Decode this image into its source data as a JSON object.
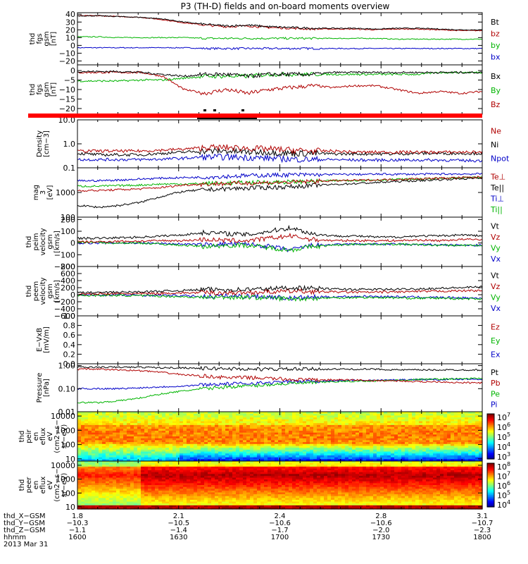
{
  "title": "P3 (TH-D) fields and on-board moments overview",
  "chart_data": [
    {
      "type": "line",
      "ylabel": [
        "thd",
        "fgs",
        "gsm",
        "[nT]"
      ],
      "ylim": [
        -25,
        42
      ],
      "yticks": [
        "40",
        "30",
        "20",
        "10",
        "0",
        "−10",
        "−20"
      ],
      "tickvals": [
        40,
        30,
        20,
        10,
        0,
        -10,
        -20
      ],
      "series": [
        {
          "name": "Bt",
          "color": "#000000",
          "values": [
            38,
            38,
            37,
            36,
            34,
            30,
            27,
            25,
            26,
            24,
            23,
            22,
            22,
            22,
            21,
            22,
            22,
            21,
            20,
            20
          ]
        },
        {
          "name": "bz",
          "color": "#b00000",
          "values": [
            38,
            38,
            37,
            36,
            33,
            29,
            26,
            24,
            25,
            23,
            22,
            21,
            21,
            21,
            20,
            21,
            21,
            20,
            19,
            19
          ]
        },
        {
          "name": "by",
          "color": "#00b400",
          "values": [
            11,
            11,
            10,
            10,
            10,
            10,
            9,
            9,
            9,
            9,
            9,
            9,
            9,
            9,
            9,
            8,
            8,
            8,
            8,
            8
          ]
        },
        {
          "name": "bx",
          "color": "#0000c8",
          "values": [
            -3,
            -3,
            -3,
            -3,
            -3,
            -3,
            -4,
            -4,
            -4,
            -4,
            -4,
            -4,
            -4,
            -4,
            -4,
            -4,
            -4,
            -4,
            -4,
            -4
          ]
        }
      ]
    },
    {
      "type": "line",
      "ylabel": [
        "thd",
        "fgs",
        "gsm",
        "[nT]"
      ],
      "ylim": [
        -23,
        3
      ],
      "yticks": [
        "0",
        "−5",
        "−10",
        "−15",
        "−20"
      ],
      "tickvals": [
        0,
        -5,
        -10,
        -15,
        -20
      ],
      "series": [
        {
          "name": "Bx",
          "color": "#000000",
          "values": [
            -0.5,
            -0.5,
            -0.5,
            -1,
            -2,
            -3,
            -2,
            -2,
            -3,
            -2,
            -2,
            -2,
            -1,
            -1,
            -1,
            -1,
            -1,
            -1,
            -1,
            -1
          ]
        },
        {
          "name": "By",
          "color": "#00b400",
          "values": [
            -5.5,
            -5.5,
            -5.5,
            -5,
            -5,
            -4,
            -3,
            -3,
            -3,
            -2,
            -2,
            -2,
            -2,
            -2,
            -2,
            -2,
            -2,
            -1,
            -1,
            -1
          ]
        },
        {
          "name": "Bz",
          "color": "#b00000",
          "values": [
            -1,
            -1,
            -1,
            -1,
            -3,
            -10,
            -12,
            -10,
            -12,
            -10,
            -9,
            -8,
            -9,
            -8,
            -8,
            -10,
            -12,
            -11,
            -12,
            -11
          ]
        }
      ]
    },
    {
      "type": "line",
      "ylabel": [
        "Density",
        "[cm−3]"
      ],
      "log": true,
      "ylim": [
        0.1,
        10
      ],
      "yticks": [
        "10.0",
        "1.0",
        "0.1"
      ],
      "tickvals": [
        10,
        1,
        0.1
      ],
      "series": [
        {
          "name": "Ne",
          "color": "#b00000",
          "values": [
            0.5,
            0.5,
            0.5,
            0.5,
            0.55,
            0.6,
            0.7,
            0.7,
            0.65,
            0.6,
            0.55,
            0.5,
            0.5,
            0.45,
            0.45,
            0.45,
            0.45,
            0.45,
            0.45,
            0.45
          ]
        },
        {
          "name": "Ni",
          "color": "#000000",
          "values": [
            0.4,
            0.35,
            0.35,
            0.35,
            0.4,
            0.45,
            0.5,
            0.5,
            0.45,
            0.45,
            0.4,
            0.4,
            0.38,
            0.38,
            0.38,
            0.38,
            0.4,
            0.4,
            0.4,
            0.4
          ]
        },
        {
          "name": "Npot",
          "color": "#0000c8",
          "values": [
            0.22,
            0.22,
            0.22,
            0.22,
            0.23,
            0.25,
            0.28,
            0.28,
            0.27,
            0.25,
            0.23,
            0.22,
            0.22,
            0.21,
            0.21,
            0.21,
            0.21,
            0.21,
            0.2,
            0.2
          ]
        }
      ]
    },
    {
      "type": "line",
      "ylabel": [
        "mag",
        "3",
        "[eV]"
      ],
      "log": true,
      "ylim": [
        100,
        10000
      ],
      "yticks": [
        "1000",
        "100"
      ],
      "tickvals": [
        1000,
        100
      ],
      "series": [
        {
          "name": "Te⊥",
          "color": "#b00000",
          "values": [
            1200,
            1200,
            1300,
            1400,
            1600,
            2000,
            2200,
            2300,
            2400,
            2500,
            2600,
            2800,
            3000,
            3100,
            3200,
            3400,
            3600,
            3800,
            4000,
            4200
          ]
        },
        {
          "name": "Te||",
          "color": "#000000",
          "values": [
            300,
            250,
            300,
            400,
            700,
            1100,
            1300,
            1400,
            1500,
            1600,
            1700,
            1900,
            2100,
            2300,
            2500,
            2800,
            3000,
            3300,
            3600,
            3800
          ]
        },
        {
          "name": "Ti⊥",
          "color": "#0000c8",
          "values": [
            3000,
            3000,
            3200,
            3500,
            3800,
            4000,
            4200,
            4500,
            4800,
            5000,
            5200,
            5200,
            5400,
            5400,
            5500,
            5500,
            5500,
            5600,
            5600,
            5600
          ]
        },
        {
          "name": "Ti||",
          "color": "#00b400",
          "values": [
            1800,
            1800,
            1900,
            2000,
            2200,
            2200,
            2300,
            2400,
            2500,
            2600,
            2700,
            2800,
            3000,
            3100,
            3200,
            3400,
            3500,
            3700,
            3900,
            4000
          ]
        }
      ]
    },
    {
      "type": "line",
      "ylabel": [
        "thd",
        "peim",
        "velocity",
        "gsm",
        "[km/s]"
      ],
      "ylim": [
        -200,
        220
      ],
      "yticks": [
        "200",
        "100",
        "0",
        "−100",
        "−200"
      ],
      "tickvals": [
        200,
        100,
        0,
        -100,
        -200
      ],
      "series": [
        {
          "name": "Vt",
          "color": "#000000",
          "values": [
            40,
            40,
            45,
            50,
            60,
            70,
            90,
            80,
            70,
            100,
            130,
            80,
            60,
            60,
            50,
            50,
            60,
            60,
            70,
            60
          ]
        },
        {
          "name": "Vz",
          "color": "#b00000",
          "values": [
            10,
            10,
            15,
            15,
            20,
            20,
            30,
            20,
            20,
            40,
            60,
            30,
            20,
            20,
            20,
            20,
            25,
            20,
            30,
            30
          ]
        },
        {
          "name": "Vy",
          "color": "#00b400",
          "values": [
            5,
            5,
            0,
            0,
            -10,
            -20,
            -30,
            -20,
            -20,
            -40,
            -60,
            -30,
            -20,
            -10,
            -10,
            -10,
            -15,
            -20,
            -20,
            -20
          ]
        },
        {
          "name": "Vx",
          "color": "#0000c8",
          "values": [
            0,
            0,
            0,
            0,
            -5,
            -10,
            -15,
            -10,
            -10,
            -30,
            -60,
            -20,
            -15,
            -10,
            -10,
            -10,
            -15,
            -15,
            -20,
            -20
          ]
        }
      ]
    },
    {
      "type": "line",
      "ylabel": [
        "thd",
        "peem",
        "velocity",
        "gsm",
        "[km/s]"
      ],
      "ylim": [
        -600,
        800
      ],
      "yticks": [
        "800",
        "600",
        "400",
        "200",
        "0",
        "−200",
        "−400",
        "−600"
      ],
      "tickvals": [
        800,
        600,
        400,
        200,
        0,
        -200,
        -400,
        -600
      ],
      "series": [
        {
          "name": "Vt",
          "color": "#000000",
          "values": [
            60,
            60,
            70,
            80,
            100,
            120,
            150,
            140,
            150,
            170,
            200,
            180,
            160,
            150,
            150,
            150,
            170,
            180,
            200,
            220
          ]
        },
        {
          "name": "Vz",
          "color": "#b00000",
          "values": [
            20,
            20,
            30,
            30,
            40,
            50,
            60,
            50,
            60,
            80,
            100,
            90,
            80,
            70,
            70,
            80,
            90,
            100,
            110,
            120
          ]
        },
        {
          "name": "Vy",
          "color": "#00b400",
          "values": [
            -20,
            -20,
            -20,
            -30,
            -40,
            -60,
            -80,
            -70,
            -70,
            -90,
            -120,
            -100,
            -90,
            -80,
            -80,
            -90,
            -100,
            -100,
            -110,
            -120
          ]
        },
        {
          "name": "Vx",
          "color": "#0000c8",
          "values": [
            -10,
            -10,
            -10,
            -15,
            -20,
            -30,
            -50,
            -40,
            -40,
            -60,
            -100,
            -70,
            -60,
            -50,
            -50,
            -60,
            -70,
            -80,
            -90,
            -100
          ]
        }
      ]
    },
    {
      "type": "line",
      "ylabel": [
        "E−VxB",
        "[mV/m]"
      ],
      "ylim": [
        0,
        1
      ],
      "yticks": [
        "1.0",
        "0.8",
        "0.6",
        "0.4",
        "0.2",
        "0.0"
      ],
      "tickvals": [
        1,
        0.8,
        0.6,
        0.4,
        0.2,
        0
      ],
      "series": [
        {
          "name": "Ez",
          "color": "#b00000",
          "values": []
        },
        {
          "name": "Ey",
          "color": "#00b400",
          "values": []
        },
        {
          "name": "Ex",
          "color": "#0000c8",
          "values": []
        }
      ]
    },
    {
      "type": "line",
      "ylabel": [
        "Pressure",
        "[nPa]"
      ],
      "log": true,
      "ylim": [
        0.01,
        1.2
      ],
      "yticks": [
        "1.00",
        "0.10",
        "0.01"
      ],
      "tickvals": [
        1,
        0.1,
        0.01
      ],
      "series": [
        {
          "name": "Pt",
          "color": "#000000",
          "values": [
            0.85,
            0.85,
            0.85,
            0.85,
            0.8,
            0.8,
            0.75,
            0.75,
            0.7,
            0.7,
            0.7,
            0.7,
            0.7,
            0.7,
            0.7,
            0.65,
            0.65,
            0.65,
            0.65,
            0.65
          ]
        },
        {
          "name": "Pb",
          "color": "#b00000",
          "values": [
            0.7,
            0.7,
            0.65,
            0.6,
            0.5,
            0.4,
            0.35,
            0.3,
            0.3,
            0.28,
            0.25,
            0.24,
            0.24,
            0.24,
            0.22,
            0.22,
            0.2,
            0.2,
            0.18,
            0.18
          ]
        },
        {
          "name": "Pe",
          "color": "#00b400",
          "values": [
            0.025,
            0.025,
            0.03,
            0.04,
            0.06,
            0.08,
            0.1,
            0.12,
            0.13,
            0.15,
            0.17,
            0.18,
            0.2,
            0.21,
            0.22,
            0.23,
            0.25,
            0.26,
            0.27,
            0.28
          ]
        },
        {
          "name": "Pi",
          "color": "#0000c8",
          "values": [
            0.1,
            0.1,
            0.1,
            0.11,
            0.12,
            0.13,
            0.15,
            0.16,
            0.17,
            0.18,
            0.2,
            0.21,
            0.22,
            0.23,
            0.23,
            0.24,
            0.25,
            0.25,
            0.26,
            0.26
          ]
        }
      ]
    },
    {
      "type": "heatmap",
      "ylabel": [
        "thd",
        "peir",
        "en",
        "eflux",
        "eV",
        "(cm2−s−",
        "sr−eV)"
      ],
      "log": true,
      "ylim": [
        7,
        20000
      ],
      "yticks": [
        "10000",
        "1000",
        "100",
        "10"
      ],
      "tickvals": [
        10000,
        1000,
        100,
        10
      ],
      "colorbar": {
        "ticks": [
          "10",
          "10",
          "10",
          "10",
          "10"
        ],
        "exps": [
          "7",
          "6",
          "5",
          "4",
          "3"
        ]
      }
    },
    {
      "type": "heatmap",
      "ylabel": [
        "thd",
        "peer",
        "en",
        "eflux",
        "eV",
        "(cm2−s−",
        "sr−eV)"
      ],
      "log": true,
      "ylim": [
        7,
        20000
      ],
      "yticks": [
        "10000",
        "1000",
        "100",
        "10"
      ],
      "tickvals": [
        10000,
        1000,
        100,
        10
      ],
      "colorbar": {
        "ticks": [
          "10",
          "10",
          "10",
          "10",
          "10"
        ],
        "exps": [
          "8",
          "7",
          "6",
          "5",
          "4"
        ]
      }
    }
  ],
  "xaxis": {
    "ticks": [
      "1600",
      "1630",
      "1700",
      "1730",
      "1800"
    ],
    "rows": [
      {
        "label": "thd_X−GSM",
        "values": [
          "1.8",
          "2.1",
          "2.4",
          "2.8",
          "3.1"
        ]
      },
      {
        "label": "thd_Y−GSM",
        "values": [
          "−10.3",
          "−10.5",
          "−10.6",
          "−10.6",
          "−10.7"
        ]
      },
      {
        "label": "thd_Z−GSM",
        "values": [
          "−1.1",
          "−1.4",
          "−1.7",
          "−2.0",
          "−2.3"
        ]
      },
      {
        "label": "hhmm",
        "values": [
          "1600",
          "1630",
          "1700",
          "1730",
          "1800"
        ]
      }
    ],
    "date": "2013 Mar 31"
  }
}
